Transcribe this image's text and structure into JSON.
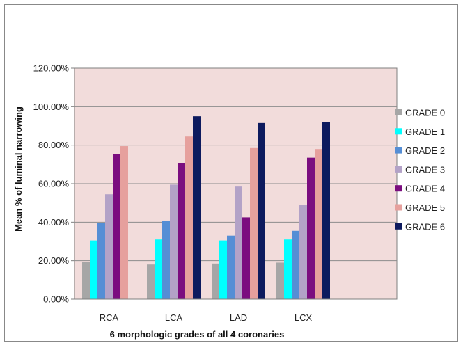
{
  "chart_data": {
    "type": "bar",
    "title": "",
    "xlabel": "6 morphologic grades of all 4 coronaries",
    "ylabel": "Mean % of luminal narrowing",
    "categories": [
      "RCA",
      "LCA",
      "LAD",
      "LCX"
    ],
    "ylim": [
      0,
      1.2
    ],
    "yticks": [
      "0.00%",
      "20.00%",
      "40.00%",
      "60.00%",
      "80.00%",
      "100.00%",
      "120.00%"
    ],
    "grid": true,
    "legend_position": "right",
    "plot_background": "#f2dcdb",
    "series": [
      {
        "name": "GRADE 0",
        "color": "#a6a6a6",
        "values": [
          0.195,
          0.18,
          0.185,
          0.19
        ]
      },
      {
        "name": "GRADE 1",
        "color": "#00ffff",
        "values": [
          0.305,
          0.31,
          0.305,
          0.31
        ]
      },
      {
        "name": "GRADE 2",
        "color": "#558ed5",
        "values": [
          0.395,
          0.405,
          0.33,
          0.355
        ]
      },
      {
        "name": "GRADE 3",
        "color": "#b3a2c7",
        "values": [
          0.545,
          0.595,
          0.585,
          0.49
        ]
      },
      {
        "name": "GRADE 4",
        "color": "#7b0d7f",
        "values": [
          0.755,
          0.705,
          0.425,
          0.735
        ]
      },
      {
        "name": "GRADE 5",
        "color": "#e6a09d",
        "values": [
          0.795,
          0.845,
          0.785,
          0.78
        ]
      },
      {
        "name": "GRADE 6",
        "color": "#0d1a5e",
        "values": [
          null,
          0.95,
          0.915,
          0.92
        ]
      }
    ]
  }
}
